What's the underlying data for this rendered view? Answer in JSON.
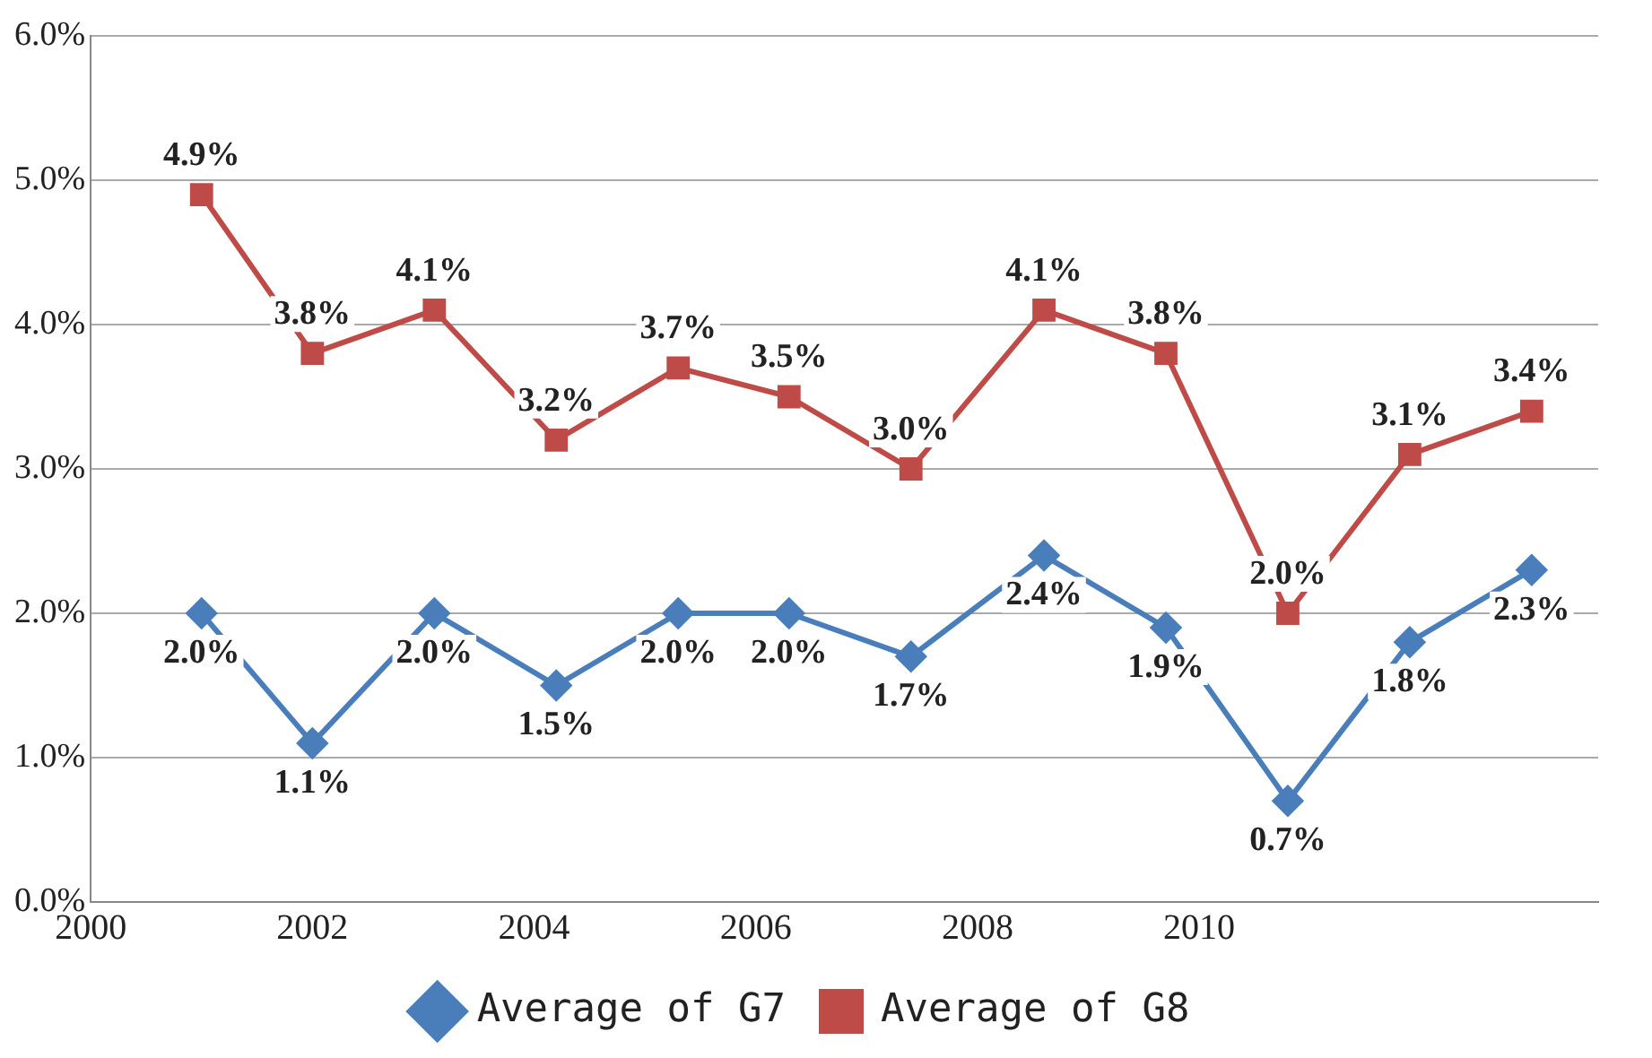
{
  "chart_data": {
    "type": "line",
    "x": [
      2001,
      2002,
      2003.1,
      2004.2,
      2005.3,
      2006.3,
      2007.4,
      2008.6,
      2009.7,
      2010.8,
      2011.9,
      2013
    ],
    "series": [
      {
        "name": "Average of G7",
        "color": "#4a7ebb",
        "marker": "diamond",
        "values": [
          2.0,
          1.1,
          2.0,
          1.5,
          2.0,
          2.0,
          1.7,
          2.4,
          1.9,
          0.7,
          1.8,
          2.3
        ],
        "value_labels": [
          "2.0%",
          "1.1%",
          "2.0%",
          "1.5%",
          "2.0%",
          "2.0%",
          "1.7%",
          "2.4%",
          "1.9%",
          "0.7%",
          "1.8%",
          "2.3%"
        ]
      },
      {
        "name": "Average of G8",
        "color": "#be4b48",
        "marker": "square",
        "values": [
          4.9,
          3.8,
          4.1,
          3.2,
          3.7,
          3.5,
          3.0,
          4.1,
          3.8,
          2.0,
          3.1,
          3.4
        ],
        "value_labels": [
          "4.9%",
          "3.8%",
          "4.1%",
          "3.2%",
          "3.7%",
          "3.5%",
          "3.0%",
          "4.1%",
          "3.8%",
          "2.0%",
          "3.1%",
          "3.4%"
        ]
      }
    ],
    "xlim": [
      2000,
      2013.6
    ],
    "xticks": [
      2000,
      2002,
      2004,
      2006,
      2008,
      2010
    ],
    "ylim": [
      0,
      6
    ],
    "yticks": [
      {
        "value": 0,
        "label": "0.0%"
      },
      {
        "value": 1,
        "label": "1.0%"
      },
      {
        "value": 2,
        "label": "2.0%"
      },
      {
        "value": 3,
        "label": "3.0%"
      },
      {
        "value": 4,
        "label": "4.0%"
      },
      {
        "value": 5,
        "label": "5.0%"
      },
      {
        "value": 6,
        "label": "6.0%"
      }
    ],
    "grid": "y",
    "legend": "bottom"
  }
}
